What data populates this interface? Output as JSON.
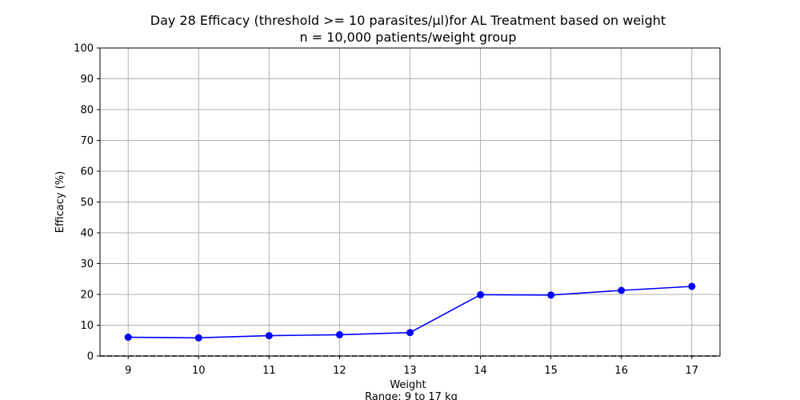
{
  "chart_data": {
    "type": "line",
    "title": "Day 28 Efficacy (threshold >= 10 parasites/µl)for AL Treatment based on weight",
    "subtitle": "n = 10,000 patients/weight group",
    "xlabel": "Weight",
    "xlabel_sub": "Range: 9 to 17 kg",
    "ylabel": "Efficacy (%)",
    "x": [
      9,
      10,
      11,
      12,
      13,
      14,
      15,
      16,
      17
    ],
    "xticks": [
      "9",
      "10",
      "11",
      "12",
      "13",
      "14",
      "15",
      "16",
      "17"
    ],
    "yticks": [
      "0",
      "10",
      "20",
      "30",
      "40",
      "50",
      "60",
      "70",
      "80",
      "90",
      "100"
    ],
    "ylim": [
      0,
      100
    ],
    "xlim": [
      8.6,
      17.4
    ],
    "grid": true,
    "reference_line_y": 0,
    "series": [
      {
        "values": [
          6.1,
          5.9,
          6.6,
          6.9,
          7.6,
          19.9,
          19.8,
          21.3,
          22.6
        ],
        "color": "#0000ff",
        "marker": "circle"
      }
    ]
  }
}
